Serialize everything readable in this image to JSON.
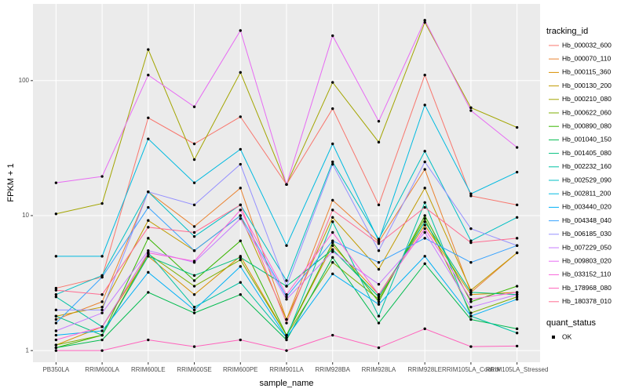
{
  "chart_data": {
    "type": "line",
    "x_label": "sample_name",
    "y_label": "FPKM + 1",
    "categories": [
      "PB350LA",
      "RRIM600LA",
      "RRIM600LE",
      "RRIM600SE",
      "RRIM600PE",
      "RRIM901LA",
      "RRIM928BA",
      "RRIM928LA",
      "RRIM928LE",
      "RRIM105LA_Control",
      "RRIM105LA_Stressed"
    ],
    "log_scale": true,
    "ylim": [
      0.82,
      370
    ],
    "yticks": [
      1,
      10,
      100
    ],
    "grid": true,
    "legend_title": "tracking_id",
    "legend_position": "right",
    "point_legend": {
      "title": "quant_status",
      "labels": [
        "OK"
      ],
      "color": "#000000"
    },
    "series": [
      {
        "name": "Hb_000032_600",
        "color": "#F8766D",
        "values": [
          2.9,
          3.5,
          53,
          34,
          54,
          17,
          62,
          12,
          110,
          14,
          12
        ]
      },
      {
        "name": "Hb_000070_110",
        "color": "#EA8331",
        "values": [
          1.7,
          2.3,
          15,
          8.3,
          16,
          1.7,
          13,
          6.4,
          22,
          2.7,
          5.3
        ]
      },
      {
        "name": "Hb_000115_360",
        "color": "#D89000",
        "values": [
          1.1,
          1.5,
          5,
          2.6,
          5,
          1.3,
          6,
          2.6,
          8.5,
          2.6,
          2.7
        ]
      },
      {
        "name": "Hb_000130_200",
        "color": "#C09B00",
        "values": [
          1.8,
          2.1,
          9.2,
          5.5,
          10,
          1.7,
          9.7,
          4,
          16,
          2.8,
          5.3
        ]
      },
      {
        "name": "Hb_000210_080",
        "color": "#A3A500",
        "values": [
          10.3,
          12.3,
          170,
          26,
          115,
          17,
          97,
          35,
          270,
          63,
          45
        ]
      },
      {
        "name": "Hb_000622_060",
        "color": "#7CAE00",
        "values": [
          1.1,
          1.3,
          5.2,
          3,
          4.7,
          1.3,
          4.5,
          2.4,
          9.5,
          1.9,
          2.5
        ]
      },
      {
        "name": "Hb_000890_080",
        "color": "#39B600",
        "values": [
          1.05,
          1.3,
          6.8,
          3.3,
          6.5,
          1.3,
          6.3,
          2.3,
          10,
          2.3,
          3
        ]
      },
      {
        "name": "Hb_001040_150",
        "color": "#00BB4E",
        "values": [
          1.05,
          1.2,
          2.7,
          1.9,
          2.6,
          1.2,
          4.9,
          1.6,
          4.4,
          1.7,
          1.45
        ]
      },
      {
        "name": "Hb_001405_080",
        "color": "#00BF7D",
        "values": [
          1.8,
          1.3,
          5,
          3.6,
          4.9,
          3,
          5.6,
          2.5,
          9,
          2.7,
          2.6
        ]
      },
      {
        "name": "Hb_002232_160",
        "color": "#00C1A3",
        "values": [
          2.5,
          1.5,
          5.3,
          2.1,
          3.2,
          1.25,
          9,
          1.8,
          12.5,
          1.8,
          1.35
        ]
      },
      {
        "name": "Hb_002529_090",
        "color": "#00BFC4",
        "values": [
          2.6,
          3.6,
          15,
          7,
          12,
          3.3,
          25,
          6.7,
          30,
          6.5,
          9.7
        ]
      },
      {
        "name": "Hb_002811_200",
        "color": "#00BAE0",
        "values": [
          5,
          5,
          37,
          17.5,
          31,
          6,
          34,
          6.5,
          66,
          14.5,
          21
        ]
      },
      {
        "name": "Hb_003440_020",
        "color": "#00B0F6",
        "values": [
          1.3,
          1.4,
          3.8,
          2,
          4.2,
          1.25,
          3.7,
          2.2,
          5,
          1.8,
          2.4
        ]
      },
      {
        "name": "Hb_004348_040",
        "color": "#35A2FF",
        "values": [
          1.6,
          3.5,
          11.5,
          5.5,
          10,
          2.5,
          6.5,
          4.5,
          6.8,
          4.5,
          6
        ]
      },
      {
        "name": "Hb_006185_030",
        "color": "#9590FF",
        "values": [
          2,
          2,
          15,
          12,
          24,
          3,
          24,
          5.5,
          25,
          8,
          6
        ]
      },
      {
        "name": "Hb_007229_050",
        "color": "#C77CFF",
        "values": [
          1.4,
          1.9,
          5.5,
          4.5,
          9.5,
          2.4,
          5.4,
          3.1,
          7.5,
          2.1,
          2.6
        ]
      },
      {
        "name": "Hb_009803_020",
        "color": "#E76BF3",
        "values": [
          17.5,
          19.5,
          110,
          64,
          235,
          17,
          215,
          50,
          280,
          60,
          32
        ]
      },
      {
        "name": "Hb_033152_110",
        "color": "#FA62DB",
        "values": [
          1.2,
          1.5,
          5.3,
          4.6,
          11,
          2.6,
          7.5,
          2.6,
          8,
          2.4,
          2.7
        ]
      },
      {
        "name": "Hb_178968_080",
        "color": "#FF62BC",
        "values": [
          1,
          1,
          1.2,
          1.07,
          1.2,
          1,
          1.3,
          1.05,
          1.45,
          1.07,
          1.08
        ]
      },
      {
        "name": "Hb_180378_010",
        "color": "#FF6C91",
        "values": [
          2.8,
          2.6,
          8.2,
          7.5,
          12,
          1.6,
          11,
          6.2,
          11.5,
          6.3,
          6.8
        ]
      }
    ]
  }
}
